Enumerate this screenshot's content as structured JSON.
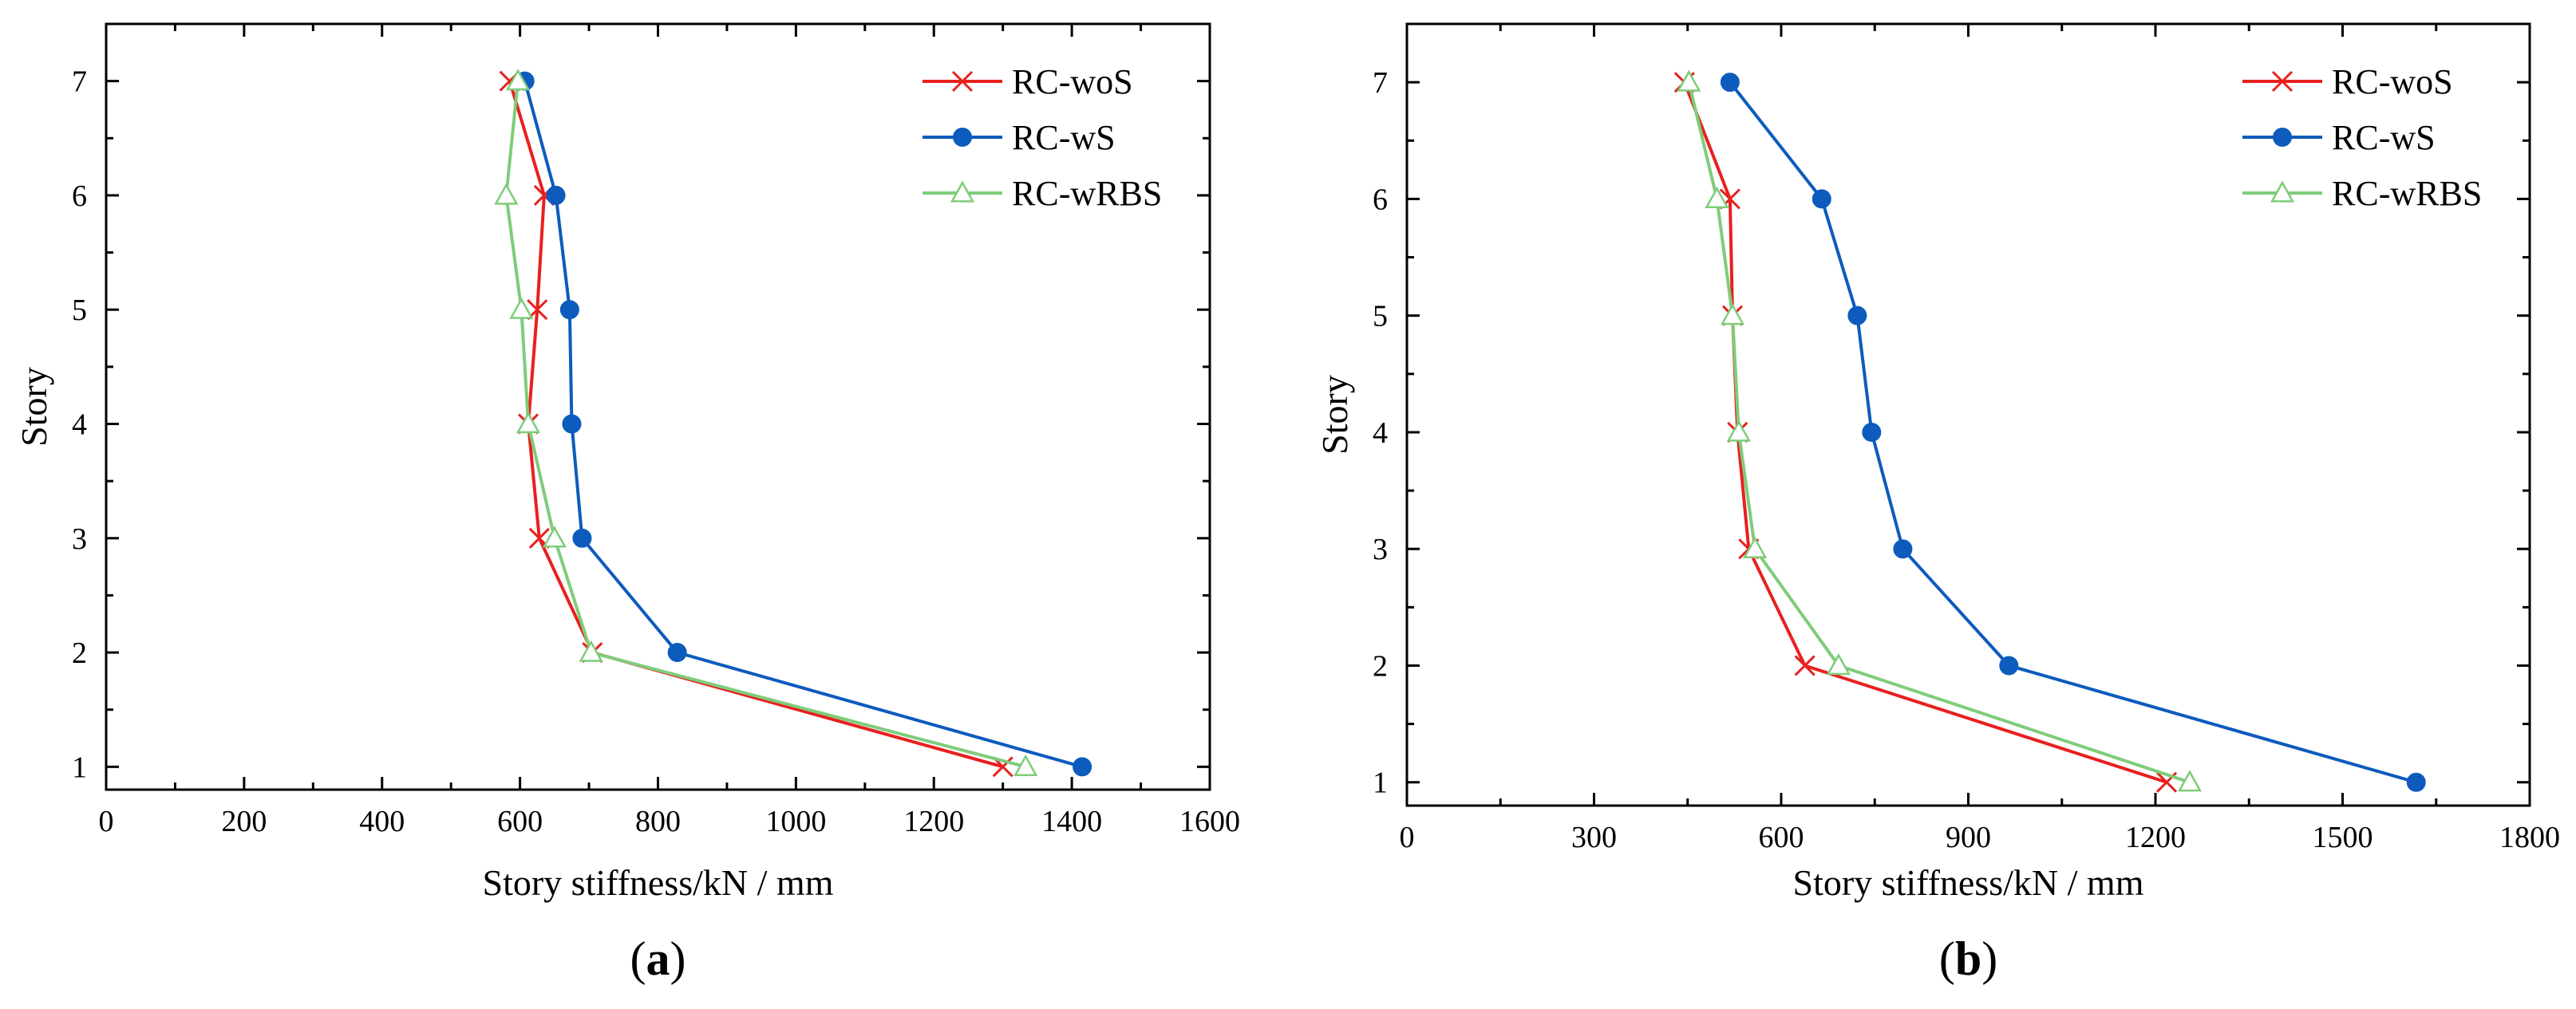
{
  "chart_data": [
    {
      "type": "line",
      "panel_label": "a",
      "xlabel": "Story stiffness/kN / mm",
      "ylabel": "Story",
      "xlim": [
        0,
        1600
      ],
      "ylim": [
        0.8,
        7.5
      ],
      "xticks": [
        0,
        200,
        400,
        600,
        800,
        1000,
        1200,
        1400,
        1600
      ],
      "yticks": [
        1,
        2,
        3,
        4,
        5,
        6,
        7
      ],
      "legend_position": "top-right",
      "series": [
        {
          "name": "RC-woS",
          "color": "#e8201f",
          "marker": "x",
          "points": [
            [
              1300,
              1
            ],
            [
              705,
              2
            ],
            [
              628,
              3
            ],
            [
              612,
              4
            ],
            [
              625,
              5
            ],
            [
              635,
              6
            ],
            [
              585,
              7
            ]
          ]
        },
        {
          "name": "RC-wS",
          "color": "#0d5bbd",
          "marker": "circle",
          "points": [
            [
              1415,
              1
            ],
            [
              828,
              2
            ],
            [
              690,
              3
            ],
            [
              675,
              4
            ],
            [
              672,
              5
            ],
            [
              652,
              6
            ],
            [
              607,
              7
            ]
          ]
        },
        {
          "name": "RC-wRBS",
          "color": "#7fcc7a",
          "marker": "triangle",
          "points": [
            [
              1333,
              1
            ],
            [
              703,
              2
            ],
            [
              650,
              3
            ],
            [
              612,
              4
            ],
            [
              602,
              5
            ],
            [
              580,
              6
            ],
            [
              597,
              7
            ]
          ]
        }
      ]
    },
    {
      "type": "line",
      "panel_label": "b",
      "xlabel": "Story stiffness/kN / mm",
      "ylabel": "Story",
      "xlim": [
        0,
        1800
      ],
      "ylim": [
        0.8,
        7.5
      ],
      "xticks": [
        0,
        300,
        600,
        900,
        1200,
        1500,
        1800
      ],
      "yticks": [
        1,
        2,
        3,
        4,
        5,
        6,
        7
      ],
      "legend_position": "top-right",
      "series": [
        {
          "name": "RC-woS",
          "color": "#e8201f",
          "marker": "x",
          "points": [
            [
              1218,
              1
            ],
            [
              638,
              2
            ],
            [
              548,
              3
            ],
            [
              530,
              4
            ],
            [
              522,
              5
            ],
            [
              518,
              6
            ],
            [
              445,
              7
            ]
          ]
        },
        {
          "name": "RC-wS",
          "color": "#0d5bbd",
          "marker": "circle",
          "points": [
            [
              1618,
              1
            ],
            [
              965,
              2
            ],
            [
              795,
              3
            ],
            [
              745,
              4
            ],
            [
              722,
              5
            ],
            [
              665,
              6
            ],
            [
              518,
              7
            ]
          ]
        },
        {
          "name": "RC-wRBS",
          "color": "#7fcc7a",
          "marker": "triangle",
          "points": [
            [
              1255,
              1
            ],
            [
              692,
              2
            ],
            [
              558,
              3
            ],
            [
              532,
              4
            ],
            [
              522,
              5
            ],
            [
              497,
              6
            ],
            [
              452,
              7
            ]
          ]
        }
      ]
    }
  ]
}
